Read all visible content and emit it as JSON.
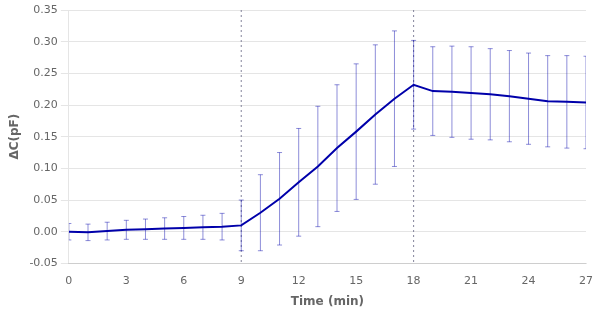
{
  "chart_data": {
    "type": "line",
    "xlabel": "Time (min)",
    "ylabel": "ΔC(pF)",
    "x": [
      0,
      1,
      2,
      3,
      4,
      5,
      6,
      7,
      8,
      9,
      10,
      11,
      12,
      13,
      14,
      15,
      16,
      17,
      18,
      19,
      20,
      21,
      22,
      23,
      24,
      25,
      26,
      27
    ],
    "values": [
      0.0,
      -0.001,
      0.001,
      0.003,
      0.004,
      0.005,
      0.006,
      0.007,
      0.008,
      0.01,
      0.03,
      0.052,
      0.078,
      0.103,
      0.132,
      0.158,
      0.185,
      0.21,
      0.232,
      0.222,
      0.221,
      0.219,
      0.217,
      0.214,
      0.21,
      0.206,
      0.205,
      0.204
    ],
    "errors": [
      0.013,
      0.013,
      0.014,
      0.015,
      0.016,
      0.017,
      0.018,
      0.019,
      0.021,
      0.04,
      0.06,
      0.073,
      0.085,
      0.095,
      0.1,
      0.107,
      0.11,
      0.107,
      0.07,
      0.07,
      0.072,
      0.073,
      0.072,
      0.072,
      0.072,
      0.072,
      0.073,
      0.073
    ],
    "vlines": [
      9,
      18
    ],
    "color": "#0000AA",
    "xlim": [
      0,
      27
    ],
    "ylim": [
      -0.05,
      0.35
    ],
    "xticks": [
      0,
      3,
      6,
      9,
      12,
      15,
      18,
      21,
      24,
      27
    ],
    "yticks": [
      -0.05,
      {
        "value": 0.0,
        "label": "0.00"
      },
      0.05,
      {
        "value": 0.1,
        "label": "0.10"
      },
      0.15,
      {
        "value": 0.2,
        "label": "0.20"
      },
      0.25,
      {
        "value": 0.3,
        "label": "0.30"
      },
      0.35
    ],
    "grid": "y"
  }
}
